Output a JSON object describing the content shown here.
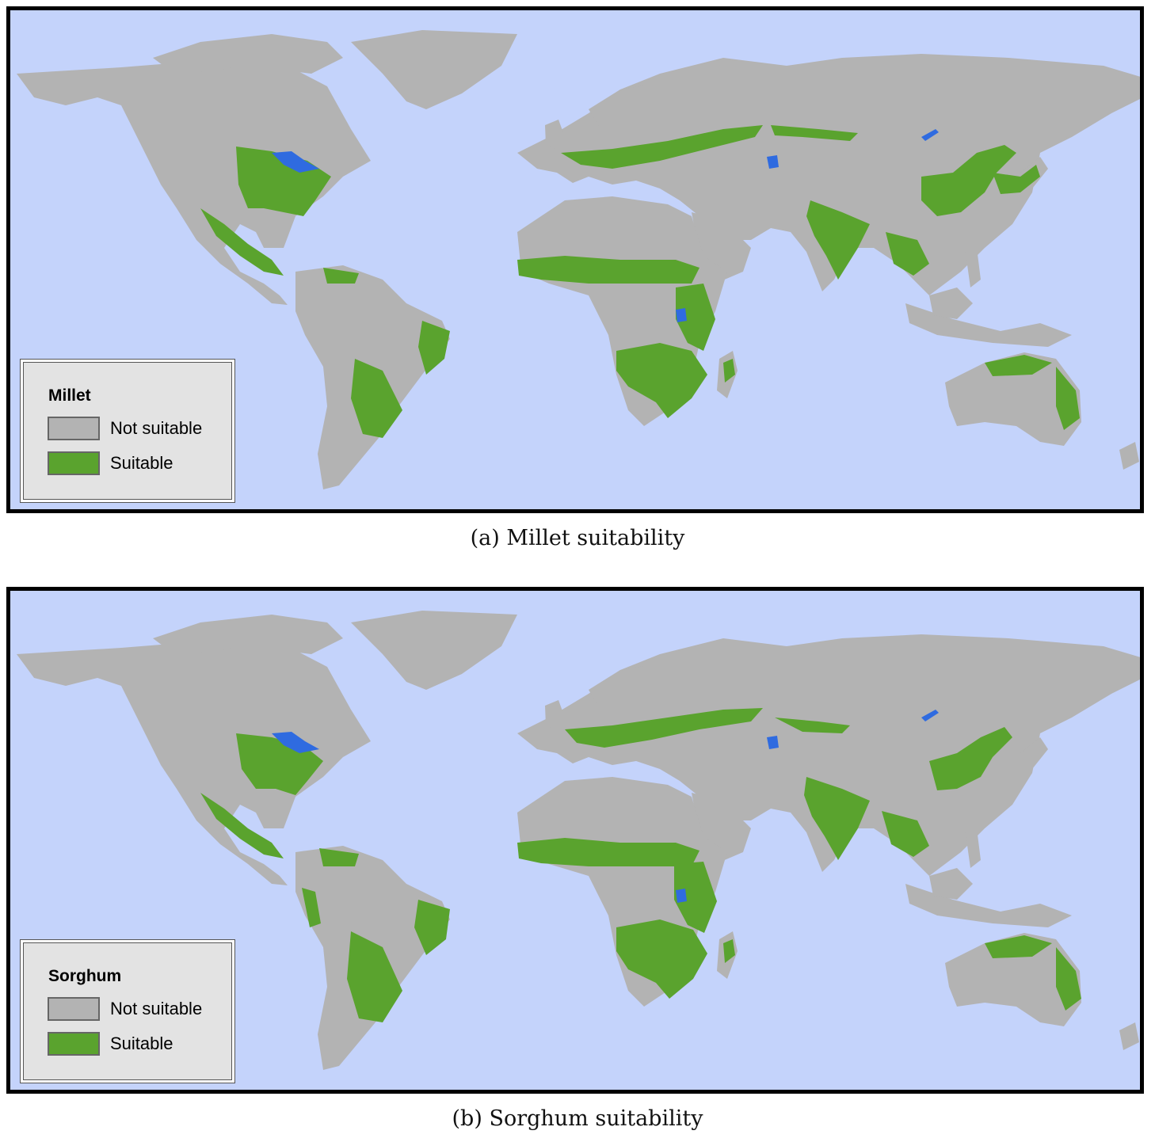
{
  "panels": [
    {
      "legend_title": "Millet",
      "legend_items": [
        {
          "label": "Not suitable",
          "color": "#b3b3b3"
        },
        {
          "label": "Suitable",
          "color": "#5aa32e"
        }
      ],
      "caption": "(a) Millet suitability"
    },
    {
      "legend_title": "Sorghum",
      "legend_items": [
        {
          "label": "Not suitable",
          "color": "#b3b3b3"
        },
        {
          "label": "Suitable",
          "color": "#5aa32e"
        }
      ],
      "caption": "(b) Sorghum suitability"
    }
  ],
  "colors": {
    "ocean": "#c4d3fb",
    "land": "#b3b3b3",
    "suitable": "#5aa32e",
    "water": "#2f6be0",
    "frame": "#000000"
  }
}
